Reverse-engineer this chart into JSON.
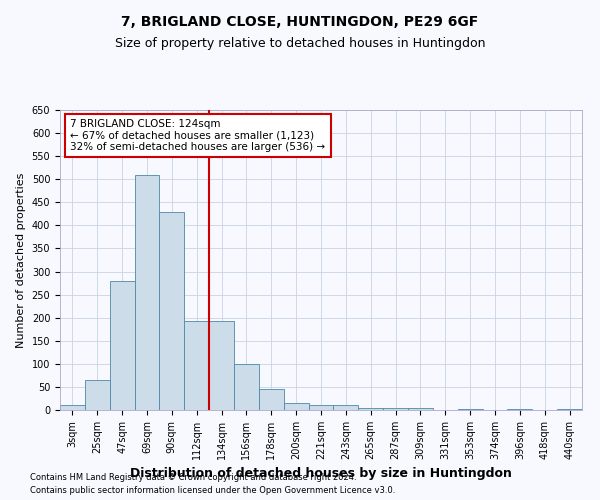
{
  "title_line1": "7, BRIGLAND CLOSE, HUNTINGDON, PE29 6GF",
  "title_line2": "Size of property relative to detached houses in Huntingdon",
  "xlabel": "Distribution of detached houses by size in Huntingdon",
  "ylabel": "Number of detached properties",
  "categories": [
    "3sqm",
    "25sqm",
    "47sqm",
    "69sqm",
    "90sqm",
    "112sqm",
    "134sqm",
    "156sqm",
    "178sqm",
    "200sqm",
    "221sqm",
    "243sqm",
    "265sqm",
    "287sqm",
    "309sqm",
    "331sqm",
    "353sqm",
    "374sqm",
    "396sqm",
    "418sqm",
    "440sqm"
  ],
  "values": [
    10,
    65,
    280,
    510,
    430,
    193,
    193,
    100,
    45,
    15,
    10,
    10,
    5,
    5,
    5,
    0,
    3,
    0,
    3,
    0,
    3
  ],
  "bar_color": "#ccdce8",
  "bar_edge_color": "#4d88aa",
  "vline_position": 5.5,
  "vline_color": "#cc0000",
  "ylim": [
    0,
    650
  ],
  "yticks": [
    0,
    50,
    100,
    150,
    200,
    250,
    300,
    350,
    400,
    450,
    500,
    550,
    600,
    650
  ],
  "annotation_text": "7 BRIGLAND CLOSE: 124sqm\n← 67% of detached houses are smaller (1,123)\n32% of semi-detached houses are larger (536) →",
  "annotation_box_color": "#ffffff",
  "annotation_box_edge": "#cc0000",
  "footer_line1": "Contains HM Land Registry data © Crown copyright and database right 2024.",
  "footer_line2": "Contains public sector information licensed under the Open Government Licence v3.0.",
  "bg_color": "#f8f8ff",
  "grid_color": "#c8d4e4",
  "title_fontsize": 10,
  "subtitle_fontsize": 9,
  "tick_fontsize": 7,
  "ylabel_fontsize": 8,
  "xlabel_fontsize": 9,
  "annot_fontsize": 7.5,
  "footer_fontsize": 6
}
